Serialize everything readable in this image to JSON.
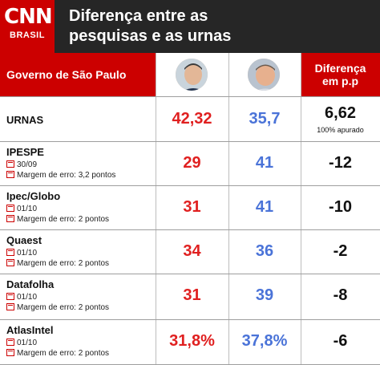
{
  "brand": {
    "logo": "CNN",
    "sub": "BRASIL"
  },
  "title_line1": "Diferença entre as",
  "title_line2": "pesquisas e as urnas",
  "header": {
    "label": "Governo de São Paulo",
    "diff_line1": "Diferença",
    "diff_line2": "em p.p"
  },
  "urnas": {
    "name": "URNAS",
    "value_red": "42,32",
    "value_blue": "35,7",
    "diff": "6,62",
    "note": "100% apurado"
  },
  "polls": [
    {
      "name": "IPESPE",
      "date": "30/09",
      "margin": "Margem de erro: 3,2 pontos",
      "value_red": "29",
      "value_blue": "41",
      "diff": "-12"
    },
    {
      "name": "Ipec/Globo",
      "date": "01/10",
      "margin": "Margem de erro: 2 pontos",
      "value_red": "31",
      "value_blue": "41",
      "diff": "-10"
    },
    {
      "name": "Quaest",
      "date": "01/10",
      "margin": "Margem de erro: 2 pontos",
      "value_red": "34",
      "value_blue": "36",
      "diff": "-2"
    },
    {
      "name": "Datafolha",
      "date": "01/10",
      "margin": "Margem de erro: 2 pontos",
      "value_red": "31",
      "value_blue": "39",
      "diff": "-8"
    },
    {
      "name": "AtlasIntel",
      "date": "01/10",
      "margin": "Margem de erro: 2 pontos",
      "value_red": "31,8%",
      "value_blue": "37,8%",
      "diff": "-6"
    }
  ],
  "colors": {
    "brand_red": "#cc0000",
    "value_red": "#e02020",
    "value_blue": "#4a73d8",
    "header_dark": "#262626"
  },
  "chart_data": {
    "type": "table",
    "columns": [
      "Governo de São Paulo",
      "",
      "",
      "Diferença em p.p"
    ],
    "rows": [
      {
        "label": "URNAS",
        "values": [
          42.32,
          35.7
        ],
        "diff": 6.62
      },
      {
        "label": "IPESPE",
        "values": [
          29,
          41
        ],
        "diff": -12
      },
      {
        "label": "Ipec/Globo",
        "values": [
          31,
          41
        ],
        "diff": -10
      },
      {
        "label": "Quaest",
        "values": [
          34,
          36
        ],
        "diff": -2
      },
      {
        "label": "Datafolha",
        "values": [
          31,
          39
        ],
        "diff": -8
      },
      {
        "label": "AtlasIntel",
        "values": [
          31.8,
          37.8
        ],
        "diff": -6
      }
    ]
  }
}
